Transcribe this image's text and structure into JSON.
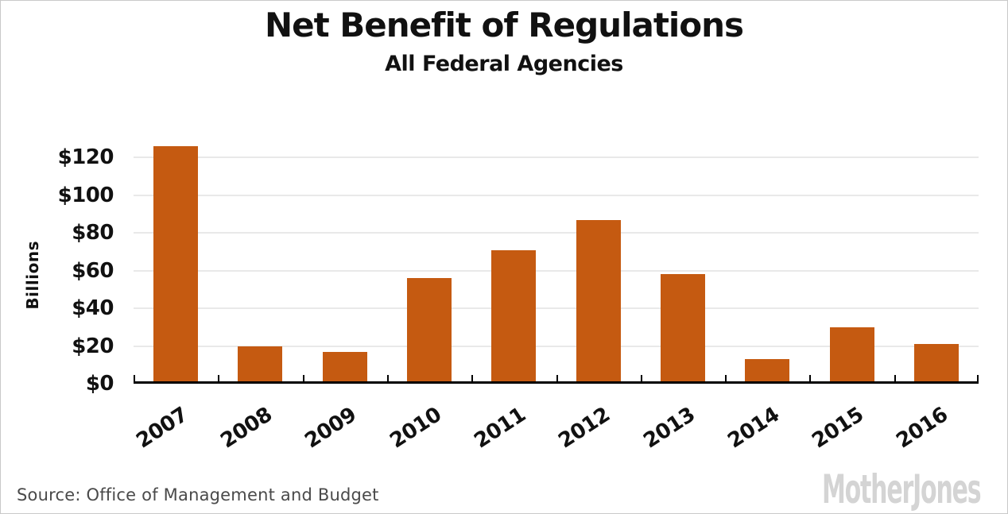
{
  "chart_data": {
    "type": "bar",
    "title": "Net Benefit of Regulations",
    "subtitle": "All Federal Agencies",
    "ylabel": "Billions",
    "xlabel": "",
    "categories": [
      "2007",
      "2008",
      "2009",
      "2010",
      "2011",
      "2012",
      "2013",
      "2014",
      "2015",
      "2016"
    ],
    "values": [
      126,
      20,
      17,
      56,
      71,
      87,
      58,
      13,
      30,
      21
    ],
    "y_ticks": [
      "$0",
      "$20",
      "$40",
      "$60",
      "$80",
      "$100",
      "$120"
    ],
    "y_tick_values": [
      0,
      20,
      40,
      60,
      80,
      100,
      120
    ],
    "ylim": [
      0,
      140
    ],
    "grid": "horizontal",
    "legend": "none",
    "bar_color": "#C55A11",
    "axis_color": "#000000",
    "gridline_color": "#E9E9E9"
  },
  "footer": {
    "source": "Source: Office of Management and Budget",
    "logo": "MotherJones",
    "logo_color": "#D4D4D4"
  }
}
